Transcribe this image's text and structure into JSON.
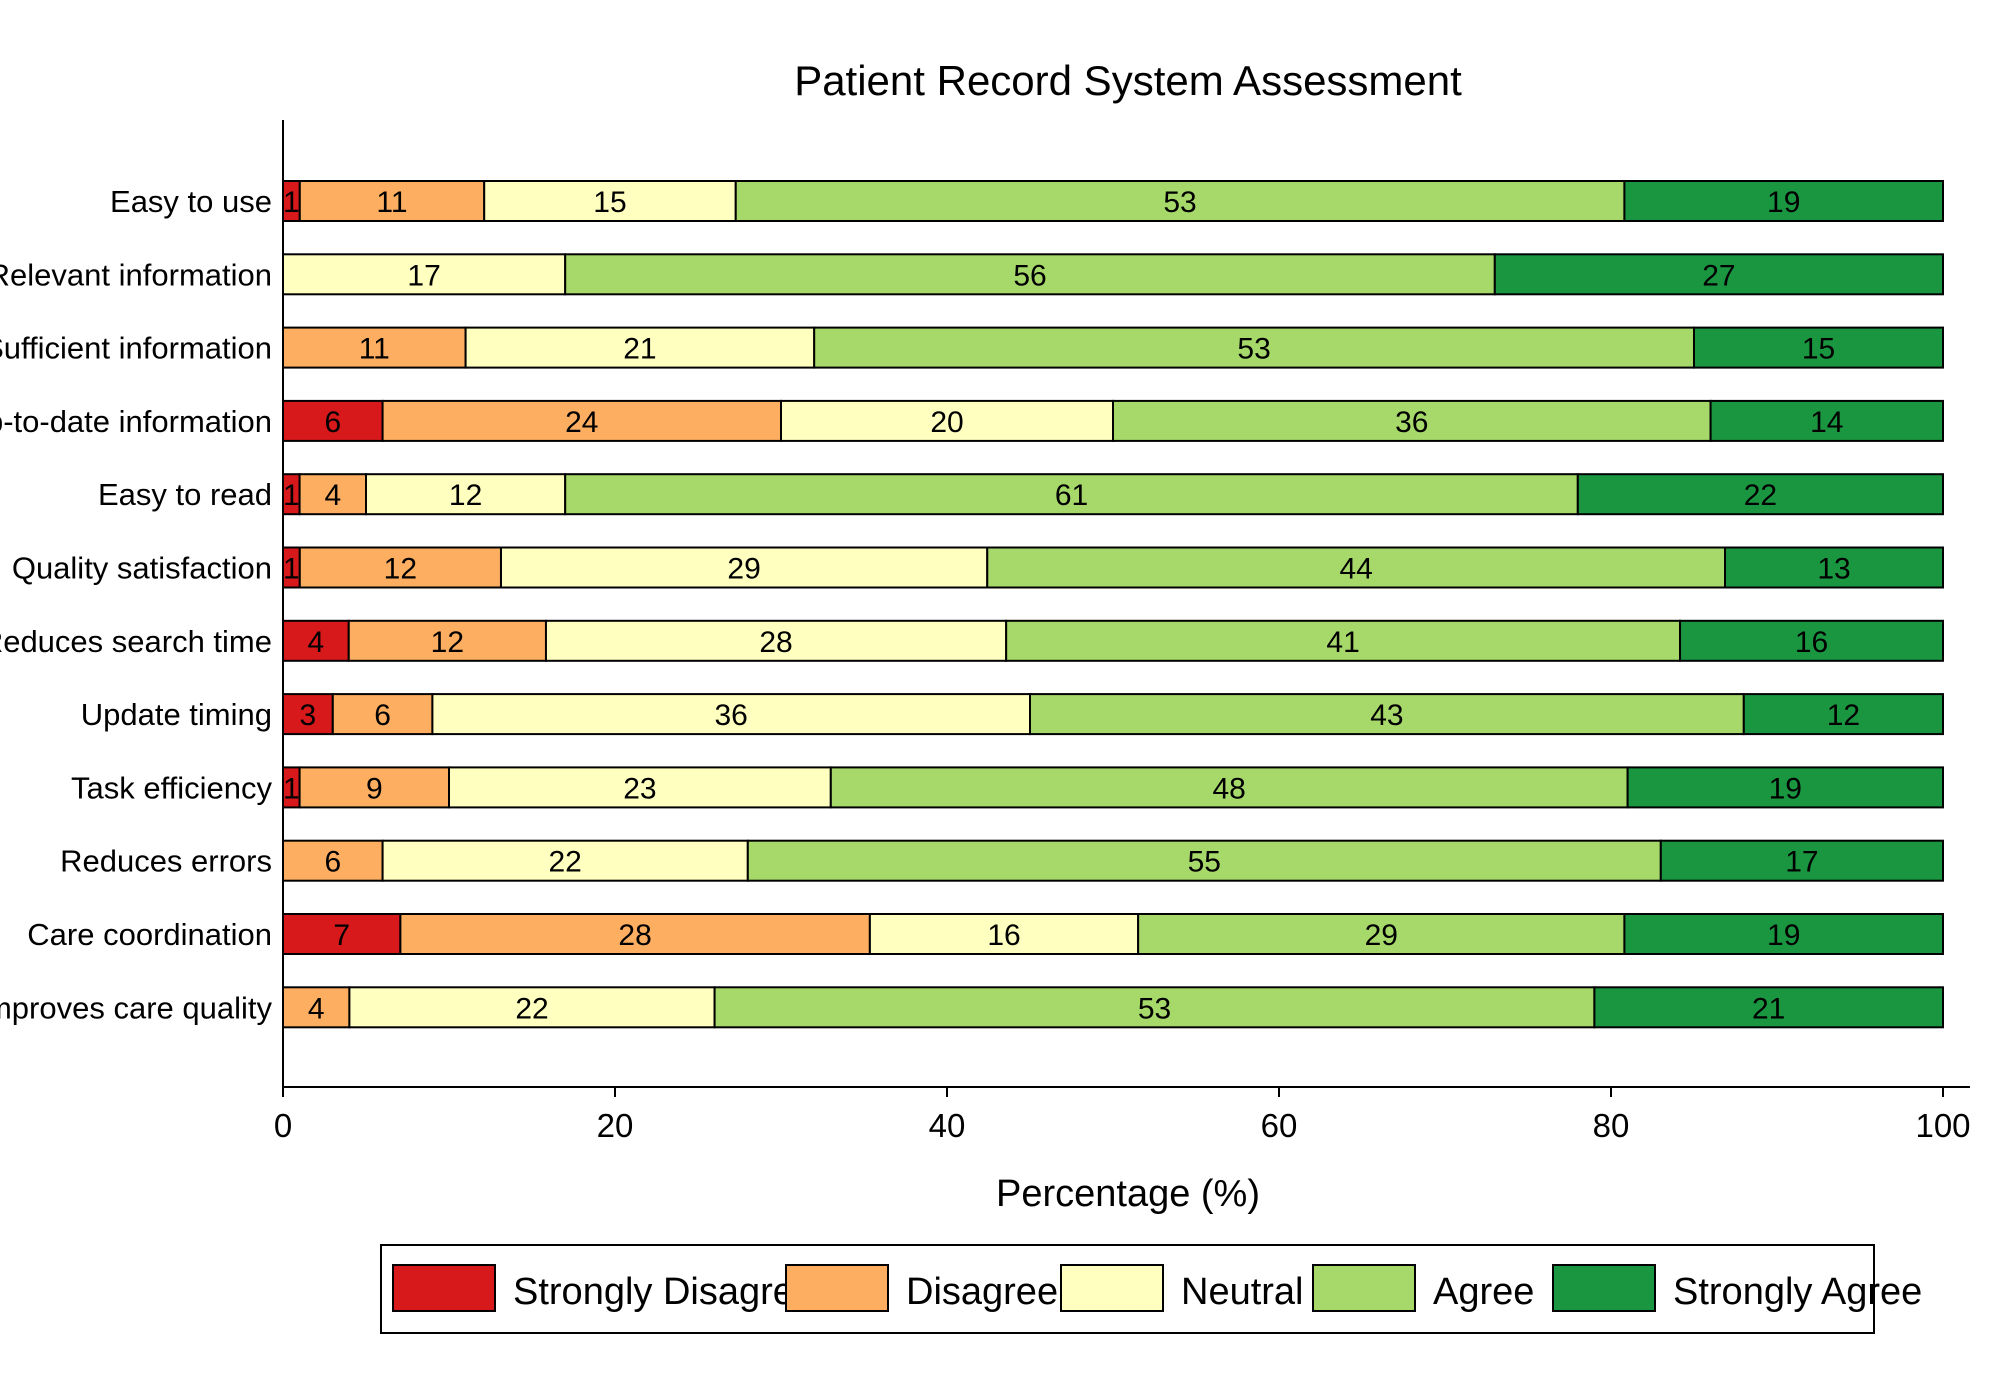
{
  "chart_data": {
    "type": "bar",
    "orientation": "horizontal",
    "stacked": true,
    "title": "Patient Record System Assessment",
    "xlabel": "Percentage (%)",
    "ylabel": "",
    "xlim": [
      0,
      100
    ],
    "xticks": [
      0,
      20,
      40,
      60,
      80,
      100
    ],
    "grid": false,
    "legend_position": "bottom",
    "categories": [
      "Easy to use",
      "Relevant information",
      "Sufficient information",
      "Up-to-date information",
      "Easy to read",
      "Quality satisfaction",
      "Reduces search time",
      "Update timing",
      "Task efficiency",
      "Reduces errors",
      "Care coordination",
      "Improves care quality"
    ],
    "series": [
      {
        "name": "Strongly Disagree",
        "color": "#d7191c",
        "values": [
          1,
          0,
          0,
          6,
          1,
          1,
          4,
          3,
          1,
          0,
          7,
          0
        ]
      },
      {
        "name": "Disagree",
        "color": "#fdae61",
        "values": [
          11,
          0,
          11,
          24,
          4,
          12,
          12,
          6,
          9,
          6,
          28,
          4
        ]
      },
      {
        "name": "Neutral",
        "color": "#ffffbf",
        "values": [
          15,
          17,
          21,
          20,
          12,
          29,
          28,
          36,
          23,
          22,
          16,
          22
        ]
      },
      {
        "name": "Agree",
        "color": "#a6d96a",
        "values": [
          53,
          56,
          53,
          36,
          61,
          44,
          41,
          43,
          48,
          55,
          29,
          53
        ]
      },
      {
        "name": "Strongly Agree",
        "color": "#1a9641",
        "values": [
          19,
          27,
          15,
          14,
          22,
          13,
          16,
          12,
          19,
          17,
          19,
          21
        ]
      }
    ]
  }
}
